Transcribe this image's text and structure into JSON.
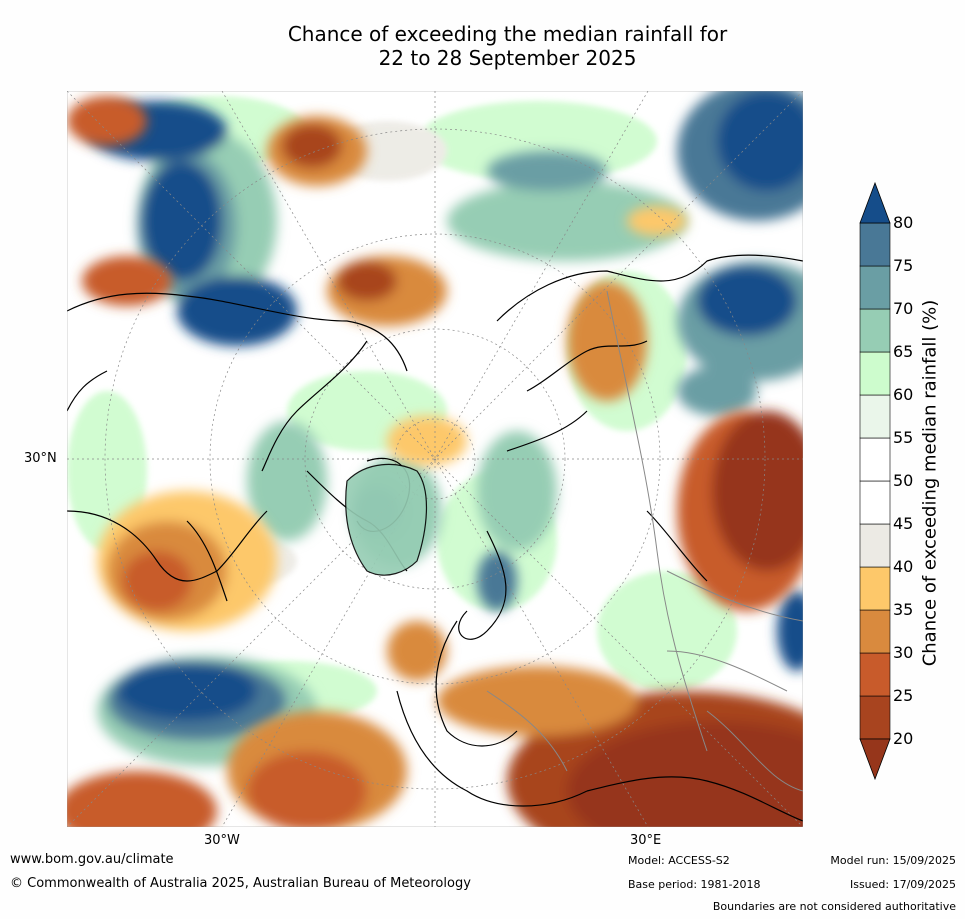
{
  "title": {
    "line1": "Chance of exceeding the median rainfall for",
    "line2": "22 to 28 September 2025"
  },
  "map": {
    "projection": "north-polar-stereographic",
    "longitude_labels": [
      "30°W",
      "30°E"
    ],
    "latitude_labels": [
      "30°N"
    ]
  },
  "colorbar": {
    "label": "Chance of exceeding median rainfall (%)",
    "ticks": [
      "20",
      "25",
      "30",
      "35",
      "40",
      "45",
      "50",
      "55",
      "60",
      "65",
      "70",
      "75",
      "80"
    ],
    "colors": [
      "#96361b",
      "#a8441f",
      "#c85b2b",
      "#d98a3e",
      "#fdc86a",
      "#eceae4",
      "#ffffff",
      "#ffffff",
      "#eaf6ea",
      "#cdfccd",
      "#96cdb4",
      "#6a9ea4",
      "#497896",
      "#154d8a"
    ],
    "extend": "both"
  },
  "footer": {
    "url": "www.bom.gov.au/climate",
    "copyright": "© Commonwealth of Australia 2025, Australian Bureau of Meteorology",
    "model": "Model: ACCESS-S2",
    "base_period": "Base period: 1981-2018",
    "model_run": "Model run: 15/09/2025",
    "issued": "Issued: 17/09/2025",
    "disclaimer": "Boundaries are not considered authoritative"
  }
}
